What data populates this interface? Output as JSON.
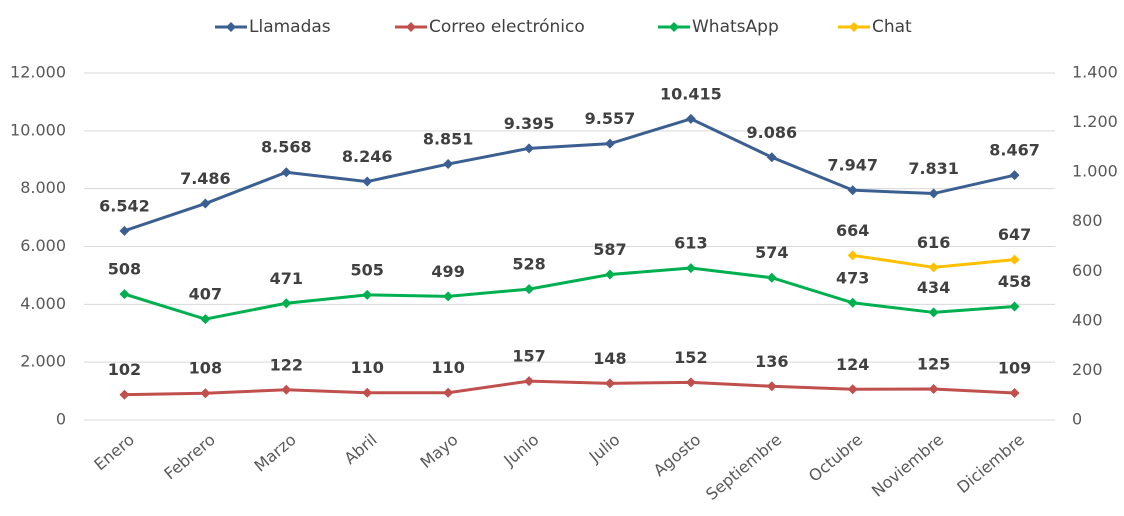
{
  "chart_data": {
    "type": "line",
    "categories": [
      "Enero",
      "Febrero",
      "Marzo",
      "Abril",
      "Mayo",
      "Junio",
      "Julio",
      "Agosto",
      "Septiembre",
      "Octubre",
      "Noviembre",
      "Diciembre"
    ],
    "series": [
      {
        "name": "Llamadas",
        "color": "#3c5f91",
        "values": [
          6542,
          7486,
          8568,
          8246,
          8851,
          9395,
          9557,
          10415,
          9086,
          7947,
          7831,
          8467
        ],
        "value_labels": [
          "6.542",
          "7.486",
          "8.568",
          "8.246",
          "8.851",
          "9.395",
          "9.557",
          "10.415",
          "9.086",
          "7.947",
          "7.831",
          "8.467"
        ]
      },
      {
        "name": "Correo electrónico",
        "color": "#c0504d",
        "axis": "y2",
        "values": [
          102,
          108,
          122,
          110,
          110,
          157,
          148,
          152,
          136,
          124,
          125,
          109
        ]
      },
      {
        "name": "WhatsApp",
        "color": "#00b050",
        "axis": "y2",
        "values": [
          508,
          407,
          471,
          505,
          499,
          528,
          587,
          613,
          574,
          473,
          434,
          458
        ]
      },
      {
        "name": "Chat",
        "color": "#ffc000",
        "axis": "y2",
        "values": [
          null,
          null,
          null,
          null,
          null,
          null,
          null,
          null,
          null,
          664,
          616,
          647
        ]
      }
    ],
    "ylim": [
      0,
      12000
    ],
    "yticks": [
      0,
      {
        "value": 2000,
        "label": "2.000"
      },
      {
        "value": 4000,
        "label": "4.000"
      },
      {
        "value": 6000,
        "label": "6.000"
      },
      {
        "value": 8000,
        "label": "8.000"
      },
      {
        "value": 10000,
        "label": "10.000"
      },
      {
        "value": 12000,
        "label": "12.000"
      }
    ],
    "y2lim": [
      0,
      1400
    ],
    "y2ticks": [
      0,
      200,
      400,
      600,
      800,
      {
        "value": 1000,
        "label": "1.000"
      },
      {
        "value": 1200,
        "label": "1.200"
      },
      {
        "value": 1400,
        "label": "1.400"
      }
    ],
    "grid": true,
    "legend": "top"
  }
}
